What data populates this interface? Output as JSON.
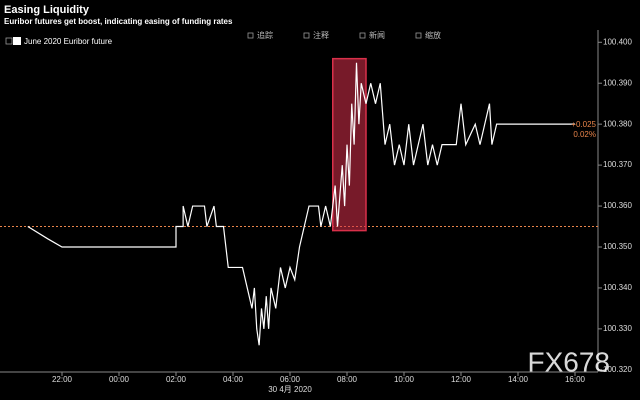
{
  "chart_data": {
    "type": "line",
    "title": "Easing Liquidity",
    "subtitle": "Euribor futures get boost, indicating easing of funding rates",
    "toolbar": [
      "追踪",
      "注释",
      "新闻",
      "缩放"
    ],
    "x_sublabel": "30 4月 2020",
    "watermark": "FX678",
    "annotations": [
      "+0.025",
      "0.02%"
    ],
    "annotation_color": "#e8844a",
    "ref_line": 100.355,
    "ref_color": "#e8844a",
    "highlight": {
      "x": [
        "07:30",
        "08:40"
      ],
      "y": [
        100.354,
        100.396
      ],
      "color": "#d9304a"
    },
    "ylim": [
      100.318,
      100.403
    ],
    "yticks": [
      {
        "value": 100.32,
        "label": "100.320"
      },
      {
        "value": 100.33,
        "label": "100.330"
      },
      {
        "value": 100.34,
        "label": "100.340"
      },
      {
        "value": 100.35,
        "label": "100.350"
      },
      {
        "value": 100.36,
        "label": "100.360"
      },
      {
        "value": 100.37,
        "label": "100.370"
      },
      {
        "value": 100.38,
        "label": "100.380"
      },
      {
        "value": 100.39,
        "label": "100.390"
      },
      {
        "value": 100.4,
        "label": "100.400"
      }
    ],
    "xticks": [
      "22:00",
      "00:00",
      "02:00",
      "04:00",
      "06:00",
      "08:00",
      "10:00",
      "12:00",
      "14:00",
      "16:00"
    ],
    "x": [
      "20:48",
      "21:30",
      "22:00",
      "02:00",
      "02:00",
      "02:15",
      "02:15",
      "02:25",
      "02:35",
      "03:00",
      "03:05",
      "03:20",
      "03:25",
      "03:40",
      "03:50",
      "04:20",
      "04:30",
      "04:40",
      "04:45",
      "04:50",
      "04:55",
      "05:00",
      "05:05",
      "05:10",
      "05:15",
      "05:20",
      "05:30",
      "05:40",
      "05:50",
      "06:00",
      "06:10",
      "06:20",
      "06:30",
      "06:40",
      "07:00",
      "07:05",
      "07:15",
      "07:25",
      "07:35",
      "07:40",
      "07:50",
      "07:55",
      "08:00",
      "08:05",
      "08:10",
      "08:15",
      "08:20",
      "08:25",
      "08:30",
      "08:40",
      "08:50",
      "09:00",
      "09:10",
      "09:20",
      "09:30",
      "09:40",
      "09:50",
      "10:00",
      "10:10",
      "10:20",
      "10:30",
      "10:40",
      "10:50",
      "11:00",
      "11:10",
      "11:20",
      "11:50",
      "12:00",
      "12:10",
      "12:30",
      "12:40",
      "12:50",
      "13:00",
      "13:05",
      "13:15",
      "16:00"
    ],
    "series": [
      {
        "name": "June 2020 Euribor future",
        "color": "#ffffff",
        "values": [
          100.355,
          100.352,
          100.35,
          100.35,
          100.355,
          100.355,
          100.36,
          100.355,
          100.36,
          100.36,
          100.355,
          100.36,
          100.355,
          100.355,
          100.345,
          100.345,
          100.34,
          100.335,
          100.34,
          100.33,
          100.326,
          100.335,
          100.33,
          100.338,
          100.33,
          100.34,
          100.335,
          100.345,
          100.34,
          100.345,
          100.342,
          100.35,
          100.355,
          100.36,
          100.36,
          100.355,
          100.36,
          100.355,
          100.365,
          100.355,
          100.37,
          100.36,
          100.375,
          100.365,
          100.385,
          100.375,
          100.395,
          100.38,
          100.39,
          100.385,
          100.39,
          100.385,
          100.39,
          100.375,
          100.38,
          100.37,
          100.375,
          100.37,
          100.38,
          100.37,
          100.375,
          100.38,
          100.37,
          100.375,
          100.37,
          100.375,
          100.375,
          100.385,
          100.375,
          100.38,
          100.375,
          100.38,
          100.385,
          100.375,
          100.38,
          100.38
        ]
      }
    ]
  }
}
